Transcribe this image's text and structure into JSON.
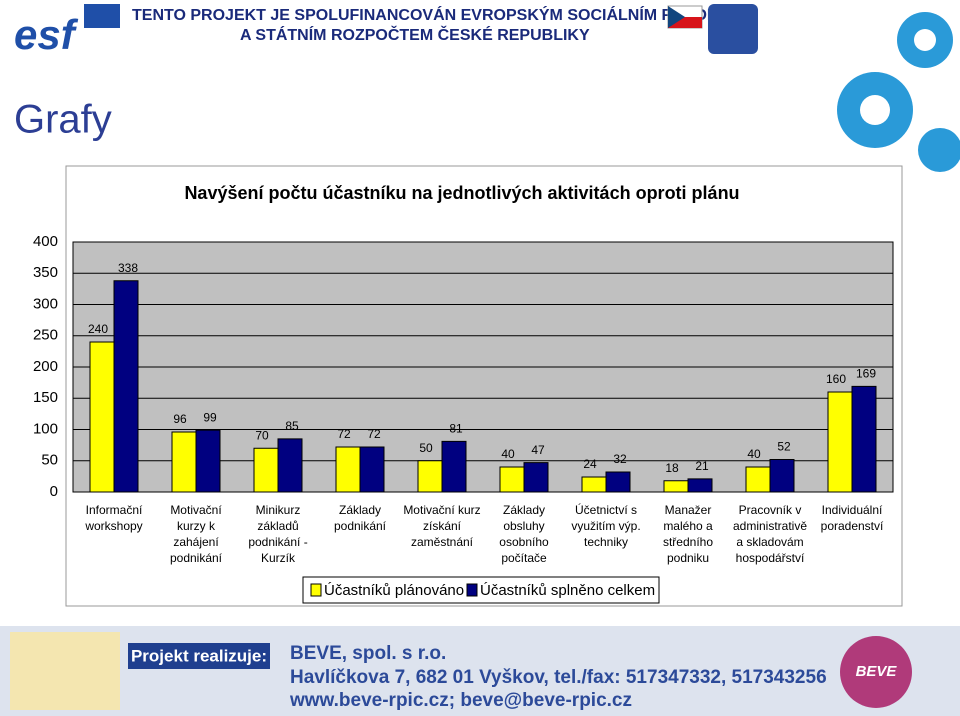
{
  "header": {
    "logo": "esf",
    "line1": "TENTO PROJEKT JE SPOLUFINANCOVÁN EVROPSKÝM SOCIÁLNÍM FONDEM",
    "line2": "A STÁTNÍM ROZPOČTEM ČESKÉ REPUBLIKY"
  },
  "slide_title": "Grafy",
  "chart_data": {
    "type": "bar",
    "title": "Navýšení počtu účastníku na jednotlivých aktivitách oproti plánu",
    "categories": [
      "Informační workshopy",
      "Motivační kurzy k zahájení podnikání",
      "Minikurz základů podnikání - Kurzík",
      "Základy podnikání",
      "Motivační kurz získání zaměstnání",
      "Základy obsluhy osobního počítače",
      "Účetnictví s využitím výp. techniky",
      "Manažer malého a středního podniku",
      "Pracovník v administrativě a skladovám hospodářství",
      "Individuální poradenství"
    ],
    "series": [
      {
        "name": "Účastníků plánováno",
        "color": "#ffff00",
        "values": [
          240,
          96,
          70,
          72,
          50,
          40,
          24,
          18,
          40,
          160
        ]
      },
      {
        "name": "Účastníků splněno celkem",
        "color": "#000080",
        "values": [
          338,
          99,
          85,
          72,
          81,
          47,
          32,
          21,
          52,
          169
        ]
      }
    ],
    "ylim": [
      0,
      400
    ],
    "yticks": [
      0,
      50,
      100,
      150,
      200,
      250,
      300,
      350,
      400
    ],
    "grid": true,
    "plot_background": "#c0c0c0",
    "legend": "bottom"
  },
  "footer": {
    "badge": "Projekt realizuje:",
    "company": "BEVE, spol. s r.o.",
    "address": "Havlíčkova 7, 682 01 Vyškov, tel./fax: 517347332, 517343256",
    "web": "www.beve-rpic.cz; beve@beve-rpic.cz",
    "logo": "BEVE"
  }
}
